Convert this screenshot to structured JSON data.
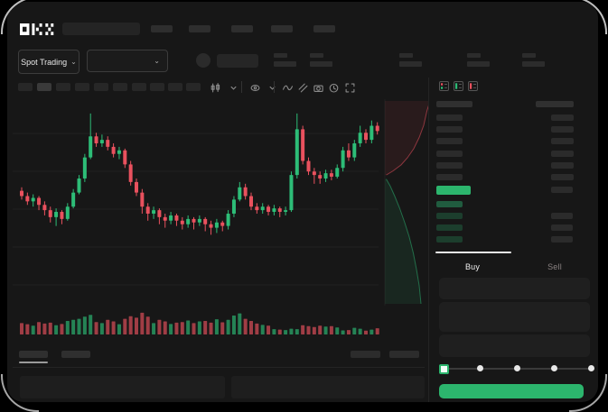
{
  "header": {
    "logo": "OKX",
    "nav_placeholder_count": 5
  },
  "market_bar": {
    "market_selector": {
      "label": "Spot Trading",
      "chevron": "⌄"
    },
    "pair_selector": {
      "value": "",
      "chevron": "⌄"
    },
    "stat_placeholder_count": 5
  },
  "chart_toolbar": {
    "timeframe_placeholder_count": 10,
    "active_timeframe_index": 1,
    "icons": [
      "candle-style",
      "chevron-down",
      "divider",
      "indicators",
      "chevron-down",
      "divider",
      "line-tool",
      "compare",
      "snapshot",
      "timer",
      "fullscreen"
    ]
  },
  "orderbook": {
    "view_icons": [
      "book-combined",
      "book-bids",
      "book-asks"
    ],
    "ask_row_count": 6,
    "bid_row_count": 4,
    "has_last_price_highlight": true
  },
  "trade_panel": {
    "tabs": [
      {
        "label": "Buy",
        "active": true
      },
      {
        "label": "Sell",
        "active": false
      }
    ],
    "input_row_count": 3,
    "slider": {
      "stop_count": 5,
      "value_index": 0
    }
  },
  "bottom_bar": {
    "tab_placeholder_count": 2,
    "active_tab_index": 0,
    "right_placeholder_count": 2,
    "panel_count": 2
  },
  "colors": {
    "background": "#000000",
    "window": "#171717",
    "up": "#2dbd77",
    "down": "#e9515e",
    "accent_green": "#2cb56d",
    "placeholder": "#2a2a2a",
    "text_primary": "#ececec",
    "text_muted": "#8a8282"
  },
  "chart_data": {
    "type": "candlestick",
    "note": "wireframe chart, no numeric axis labels visible; OHLC values on relative 0-100 scale read from candle geometry",
    "candles_ohlc": [
      [
        53,
        55,
        48,
        50
      ],
      [
        50,
        52,
        45,
        47
      ],
      [
        47,
        51,
        44,
        49
      ],
      [
        49,
        50,
        42,
        45
      ],
      [
        45,
        47,
        39,
        42
      ],
      [
        42,
        44,
        35,
        38
      ],
      [
        38,
        43,
        33,
        41
      ],
      [
        41,
        42,
        34,
        37
      ],
      [
        37,
        46,
        36,
        44
      ],
      [
        44,
        54,
        43,
        52
      ],
      [
        52,
        62,
        51,
        60
      ],
      [
        60,
        74,
        58,
        72
      ],
      [
        72,
        97,
        71,
        84
      ],
      [
        84,
        86,
        78,
        80
      ],
      [
        80,
        85,
        78,
        82
      ],
      [
        82,
        84,
        76,
        78
      ],
      [
        78,
        80,
        72,
        74
      ],
      [
        74,
        78,
        71,
        76
      ],
      [
        76,
        77,
        66,
        68
      ],
      [
        68,
        70,
        56,
        58
      ],
      [
        58,
        60,
        50,
        52
      ],
      [
        52,
        54,
        40,
        44
      ],
      [
        44,
        46,
        36,
        40
      ],
      [
        40,
        44,
        37,
        42
      ],
      [
        42,
        43,
        34,
        38
      ],
      [
        38,
        40,
        32,
        36
      ],
      [
        36,
        41,
        34,
        39
      ],
      [
        39,
        40,
        33,
        36
      ],
      [
        36,
        38,
        31,
        34
      ],
      [
        34,
        39,
        32,
        37
      ],
      [
        37,
        38,
        31,
        35
      ],
      [
        35,
        39,
        33,
        37
      ],
      [
        37,
        38,
        30,
        34
      ],
      [
        34,
        36,
        28,
        32
      ],
      [
        32,
        37,
        29,
        35
      ],
      [
        35,
        36,
        30,
        33
      ],
      [
        33,
        42,
        31,
        40
      ],
      [
        40,
        50,
        38,
        48
      ],
      [
        48,
        58,
        47,
        55
      ],
      [
        55,
        57,
        48,
        50
      ],
      [
        50,
        52,
        42,
        44
      ],
      [
        44,
        46,
        40,
        42
      ],
      [
        42,
        46,
        40,
        44
      ],
      [
        44,
        45,
        39,
        41
      ],
      [
        41,
        45,
        39,
        43
      ],
      [
        43,
        44,
        38,
        41
      ],
      [
        41,
        44,
        39,
        42
      ],
      [
        42,
        64,
        41,
        62
      ],
      [
        62,
        97,
        60,
        88
      ],
      [
        88,
        90,
        68,
        70
      ],
      [
        70,
        72,
        62,
        64
      ],
      [
        64,
        66,
        57,
        62
      ],
      [
        62,
        64,
        57,
        60
      ],
      [
        60,
        65,
        58,
        63
      ],
      [
        63,
        65,
        59,
        61
      ],
      [
        61,
        68,
        60,
        66
      ],
      [
        66,
        78,
        64,
        76
      ],
      [
        76,
        80,
        70,
        72
      ],
      [
        72,
        82,
        70,
        80
      ],
      [
        80,
        90,
        78,
        86
      ],
      [
        86,
        88,
        80,
        82
      ],
      [
        82,
        93,
        80,
        90
      ],
      [
        90,
        92,
        85,
        87
      ]
    ],
    "volume": [
      40,
      35,
      28,
      45,
      38,
      42,
      30,
      36,
      50,
      55,
      60,
      70,
      78,
      45,
      40,
      55,
      48,
      35,
      60,
      72,
      65,
      88,
      70,
      40,
      55,
      48,
      36,
      42,
      45,
      52,
      40,
      48,
      50,
      42,
      58,
      44,
      55,
      75,
      85,
      60,
      50,
      38,
      32,
      28,
      12,
      10,
      8,
      14,
      12,
      30,
      26,
      22,
      28,
      24,
      26,
      20,
      6,
      8,
      18,
      14,
      5,
      10,
      16
    ],
    "depth": {
      "asks_fraction_points": [
        [
          1,
          0
        ],
        [
          0.93,
          0.05
        ],
        [
          0.86,
          0.12
        ],
        [
          0.76,
          0.18
        ],
        [
          0.64,
          0.235
        ],
        [
          0.5,
          0.28
        ],
        [
          0.36,
          0.315
        ],
        [
          0.18,
          0.345
        ],
        [
          0.03,
          0.365
        ]
      ],
      "bids_fraction_points": [
        [
          0.03,
          0.385
        ],
        [
          0.12,
          0.42
        ],
        [
          0.22,
          0.47
        ],
        [
          0.33,
          0.53
        ],
        [
          0.44,
          0.6
        ],
        [
          0.54,
          0.67
        ],
        [
          0.63,
          0.75
        ],
        [
          0.7,
          0.83
        ],
        [
          0.76,
          0.91
        ],
        [
          0.8,
          1.0
        ]
      ]
    },
    "legend_position": "none",
    "grid": "faint horizontal lines"
  }
}
